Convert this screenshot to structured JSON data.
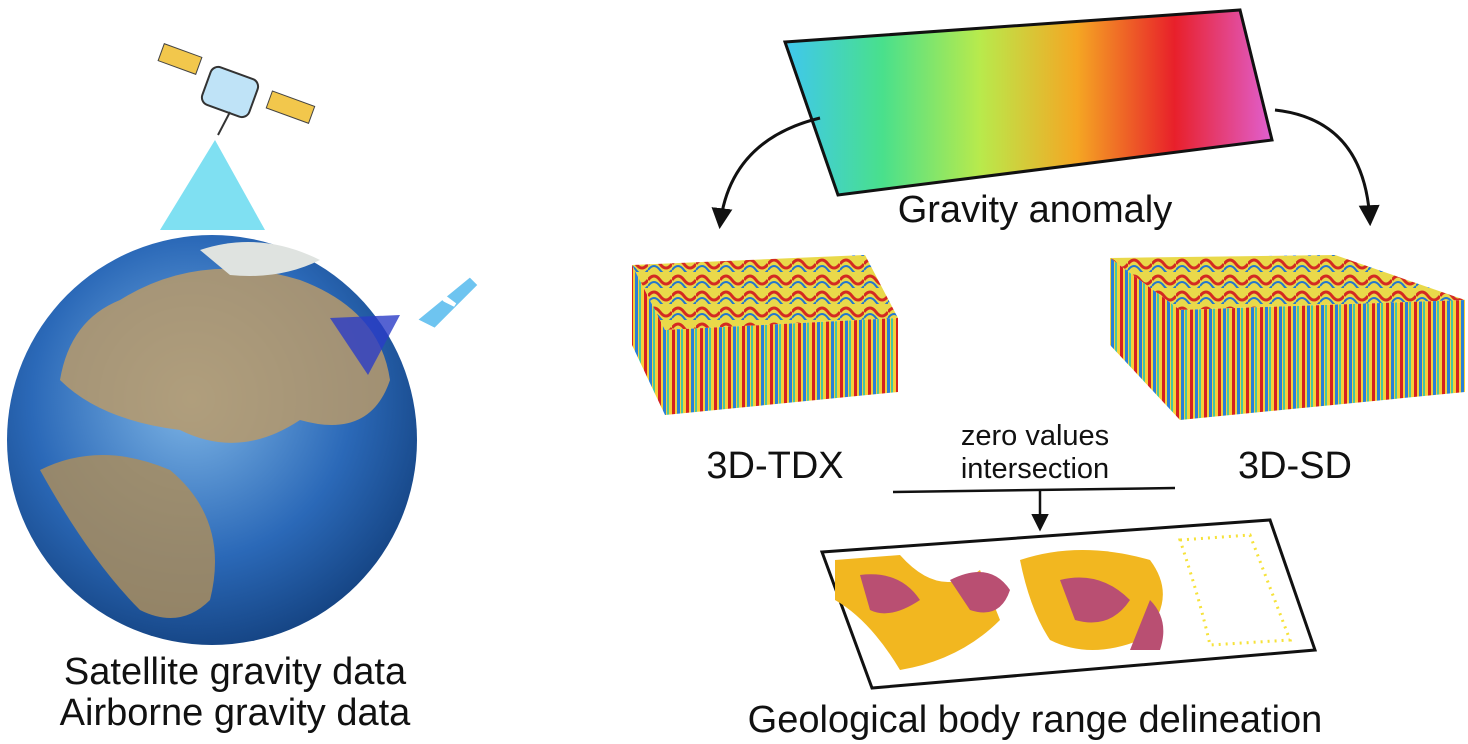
{
  "left": {
    "labels": [
      "Satellite gravity data",
      "Airborne gravity data"
    ]
  },
  "nodes": [
    {
      "label": "Gravity anomaly"
    },
    {
      "label": "3D-TDX"
    },
    {
      "label": "3D-SD"
    },
    {
      "label": "Geological body range delineation"
    }
  ],
  "connector": {
    "label": [
      "zero values",
      "intersection"
    ]
  }
}
